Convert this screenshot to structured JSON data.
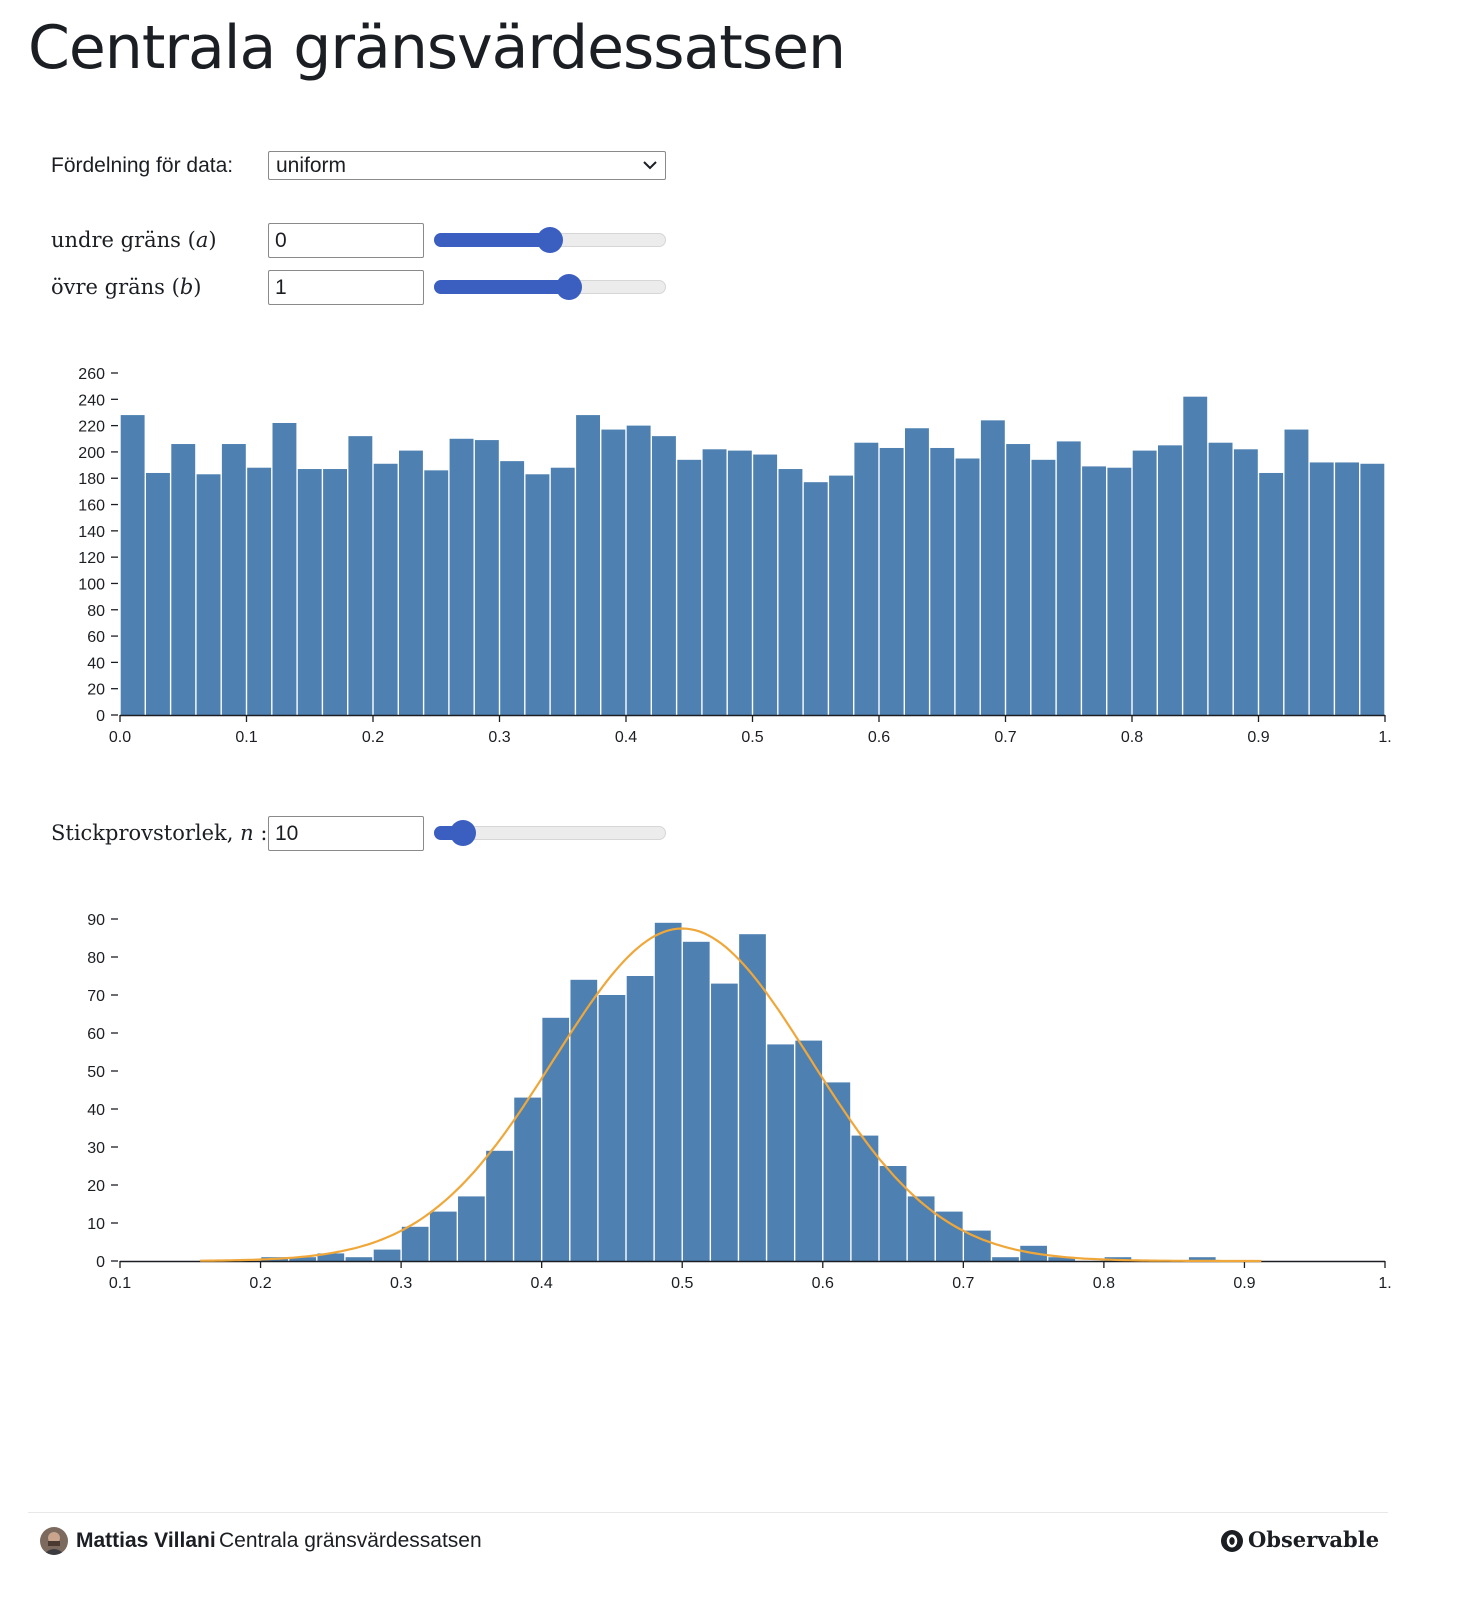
{
  "page": {
    "title": "Centrala gränsvärdessatsen"
  },
  "controls": {
    "distribution": {
      "label": "Fördelning för data:",
      "value": "uniform"
    },
    "lower": {
      "label_text": "undre gräns",
      "symbol": "a",
      "value": "0",
      "slider_level": 0.5
    },
    "upper": {
      "label_text": "övre gräns",
      "symbol": "b",
      "value": "1",
      "slider_level": 0.59
    },
    "sample_size": {
      "label_text": "Stickprovstorlek,",
      "symbol": "n",
      "suffix": ":",
      "value": "10",
      "slider_level": 0.08
    }
  },
  "chart_data": [
    {
      "type": "bar",
      "bin_start": 0,
      "bin_width": 0.02,
      "values": [
        228,
        184,
        206,
        183,
        206,
        188,
        222,
        187,
        187,
        212,
        191,
        201,
        186,
        210,
        209,
        193,
        183,
        188,
        228,
        217,
        220,
        212,
        194,
        202,
        201,
        198,
        187,
        177,
        182,
        207,
        203,
        218,
        203,
        195,
        224,
        206,
        194,
        208,
        189,
        188,
        201,
        205,
        242,
        207,
        202,
        184,
        217,
        192,
        192,
        191
      ],
      "xlim": [
        0,
        1
      ],
      "ylim": [
        0,
        260
      ],
      "yticks": [
        0,
        20,
        40,
        60,
        80,
        100,
        120,
        140,
        160,
        180,
        200,
        220,
        240,
        260
      ],
      "xticks": [
        "0.0",
        "0.1",
        "0.2",
        "0.3",
        "0.4",
        "0.5",
        "0.6",
        "0.7",
        "0.8",
        "0.9",
        "1."
      ],
      "color": "#4e81b2",
      "grid": false
    },
    {
      "type": "bar",
      "bin_start": 0.1,
      "bin_width": 0.02,
      "values": [
        0,
        0,
        0,
        0,
        0,
        1,
        1,
        2,
        1,
        3,
        9,
        13,
        17,
        29,
        43,
        64,
        74,
        70,
        75,
        89,
        84,
        73,
        86,
        57,
        58,
        47,
        33,
        25,
        17,
        13,
        8,
        1,
        4,
        1,
        0,
        1,
        0,
        0,
        1,
        0,
        0,
        0,
        0,
        0,
        0
      ],
      "xlim": [
        0.1,
        1
      ],
      "ylim": [
        0,
        90
      ],
      "yticks": [
        0,
        10,
        20,
        30,
        40,
        50,
        60,
        70,
        80,
        90
      ],
      "xticks": [
        "0.1",
        "0.2",
        "0.3",
        "0.4",
        "0.5",
        "0.6",
        "0.7",
        "0.8",
        "0.9",
        "1."
      ],
      "color": "#4e81b2",
      "curve": {
        "type": "normal",
        "mean": 0.5,
        "peak": 87.5,
        "sd": 0.0913,
        "x_range": [
          0.157,
          0.912
        ],
        "color": "#f0a739"
      },
      "grid": false
    }
  ],
  "footer": {
    "author": "Mattias Villani",
    "notebook_title": "Centrala gränsvärdessatsen",
    "brand": "Observable"
  }
}
